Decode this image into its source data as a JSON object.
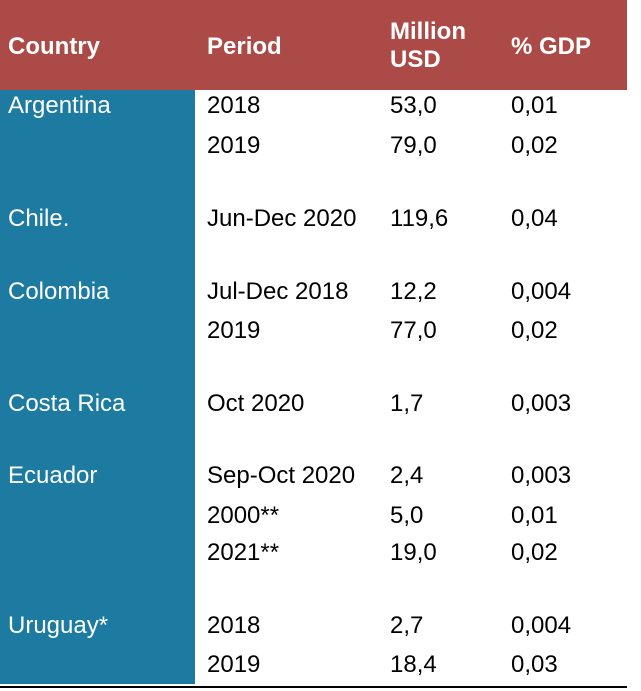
{
  "header": {
    "country": "Country",
    "period": "Period",
    "million_usd": "Million USD",
    "pct_gdp": "% GDP"
  },
  "groups": [
    {
      "country": "Argentina",
      "rows": [
        {
          "period": "2018",
          "usd": "53,0",
          "gdp": "0,01"
        },
        {
          "period": "2019",
          "usd": "79,0",
          "gdp": "0,02"
        }
      ]
    },
    {
      "country": "Chile.",
      "rows": [
        {
          "period": "Jun-Dec 2020",
          "usd": "119,6",
          "gdp": "0,04"
        }
      ]
    },
    {
      "country": "Colombia",
      "rows": [
        {
          "period": "Jul-Dec 2018",
          "usd": "12,2",
          "gdp": "0,004"
        },
        {
          "period": "2019",
          "usd": "77,0",
          "gdp": "0,02"
        }
      ]
    },
    {
      "country": "Costa Rica",
      "rows": [
        {
          "period": "Oct 2020",
          "usd": "1,7",
          "gdp": "0,003"
        }
      ]
    },
    {
      "country": "Ecuador",
      "rows": [
        {
          "period": "Sep-Oct 2020",
          "usd": "2,4",
          "gdp": "0,003"
        },
        {
          "period": "2000**",
          "usd": "5,0",
          "gdp": "0,01"
        },
        {
          "period": "2021**",
          "usd": "19,0",
          "gdp": "0,02"
        }
      ]
    },
    {
      "country": "Uruguay*",
      "rows": [
        {
          "period": "2018",
          "usd": "2,7",
          "gdp": "0,004"
        },
        {
          "period": "2019",
          "usd": "18,4",
          "gdp": "0,03"
        }
      ]
    }
  ],
  "colors": {
    "header_bg": "#ab4a47",
    "country_col_bg": "#1d7aa0",
    "header_text": "#ffffff",
    "country_text": "#ffffff",
    "body_text": "#000000"
  }
}
